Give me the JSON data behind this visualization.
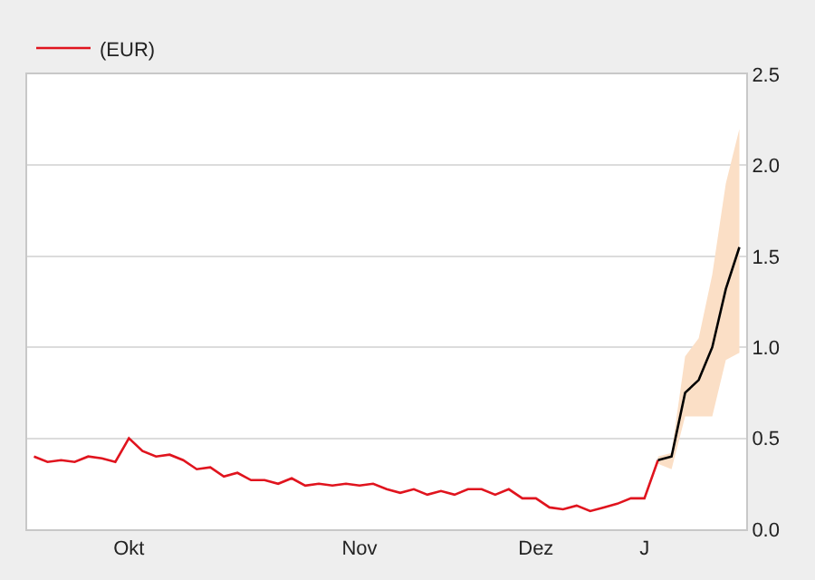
{
  "chart_data": {
    "type": "line",
    "categories": [
      null,
      null,
      null,
      null,
      null,
      null,
      null,
      "Okt",
      null,
      null,
      null,
      null,
      null,
      null,
      null,
      null,
      null,
      null,
      null,
      null,
      null,
      null,
      null,
      null,
      "Nov",
      null,
      null,
      null,
      null,
      null,
      null,
      null,
      null,
      null,
      null,
      null,
      null,
      "Dez",
      null,
      null,
      null,
      null,
      null,
      null,
      null,
      "J",
      null,
      null,
      null,
      null,
      null,
      null,
      null
    ],
    "ylim": [
      0,
      2.5
    ],
    "yticks": [
      {
        "value": 0,
        "label": "0.0"
      },
      {
        "value": 0.5,
        "label": "0.5"
      },
      {
        "value": 1,
        "label": "1.0"
      },
      {
        "value": 1.5,
        "label": "1.5"
      },
      {
        "value": 2,
        "label": "2.0"
      },
      {
        "value": 2.5,
        "label": "2.5"
      }
    ],
    "grid": "y",
    "legend": "top left",
    "marker": "none",
    "line_style": "solid",
    "series": [
      {
        "name": "(EUR)",
        "color": "#e0141e",
        "values": [
          0.4,
          0.37,
          0.38,
          0.37,
          0.4,
          0.39,
          0.37,
          0.5,
          0.43,
          0.4,
          0.41,
          0.38,
          0.33,
          0.34,
          0.29,
          0.31,
          0.27,
          0.27,
          0.25,
          0.28,
          0.24,
          0.25,
          0.24,
          0.25,
          0.24,
          0.25,
          0.22,
          0.2,
          0.22,
          0.19,
          0.21,
          0.19,
          0.22,
          0.22,
          0.19,
          0.22,
          0.17,
          0.17,
          0.12,
          0.11,
          0.13,
          0.1,
          0.12,
          0.14,
          0.17,
          0.17,
          0.38,
          null,
          null,
          null,
          null,
          null,
          null
        ]
      },
      {
        "color": "#000000",
        "values": [
          null,
          null,
          null,
          null,
          null,
          null,
          null,
          null,
          null,
          null,
          null,
          null,
          null,
          null,
          null,
          null,
          null,
          null,
          null,
          null,
          null,
          null,
          null,
          null,
          null,
          null,
          null,
          null,
          null,
          null,
          null,
          null,
          null,
          null,
          null,
          null,
          null,
          null,
          null,
          null,
          null,
          null,
          null,
          null,
          null,
          null,
          0.38,
          0.4,
          0.75,
          0.82,
          1.0,
          1.32,
          1.55
        ],
        "lower": [
          null,
          null,
          null,
          null,
          null,
          null,
          null,
          null,
          null,
          null,
          null,
          null,
          null,
          null,
          null,
          null,
          null,
          null,
          null,
          null,
          null,
          null,
          null,
          null,
          null,
          null,
          null,
          null,
          null,
          null,
          null,
          null,
          null,
          null,
          null,
          null,
          null,
          null,
          null,
          null,
          null,
          null,
          null,
          null,
          null,
          null,
          0.36,
          0.33,
          0.62,
          0.62,
          0.62,
          0.93,
          0.97
        ],
        "upper": [
          null,
          null,
          null,
          null,
          null,
          null,
          null,
          null,
          null,
          null,
          null,
          null,
          null,
          null,
          null,
          null,
          null,
          null,
          null,
          null,
          null,
          null,
          null,
          null,
          null,
          null,
          null,
          null,
          null,
          null,
          null,
          null,
          null,
          null,
          null,
          null,
          null,
          null,
          null,
          null,
          null,
          null,
          null,
          null,
          null,
          null,
          0.4,
          0.42,
          0.95,
          1.05,
          1.4,
          1.9,
          2.2
        ]
      }
    ]
  }
}
